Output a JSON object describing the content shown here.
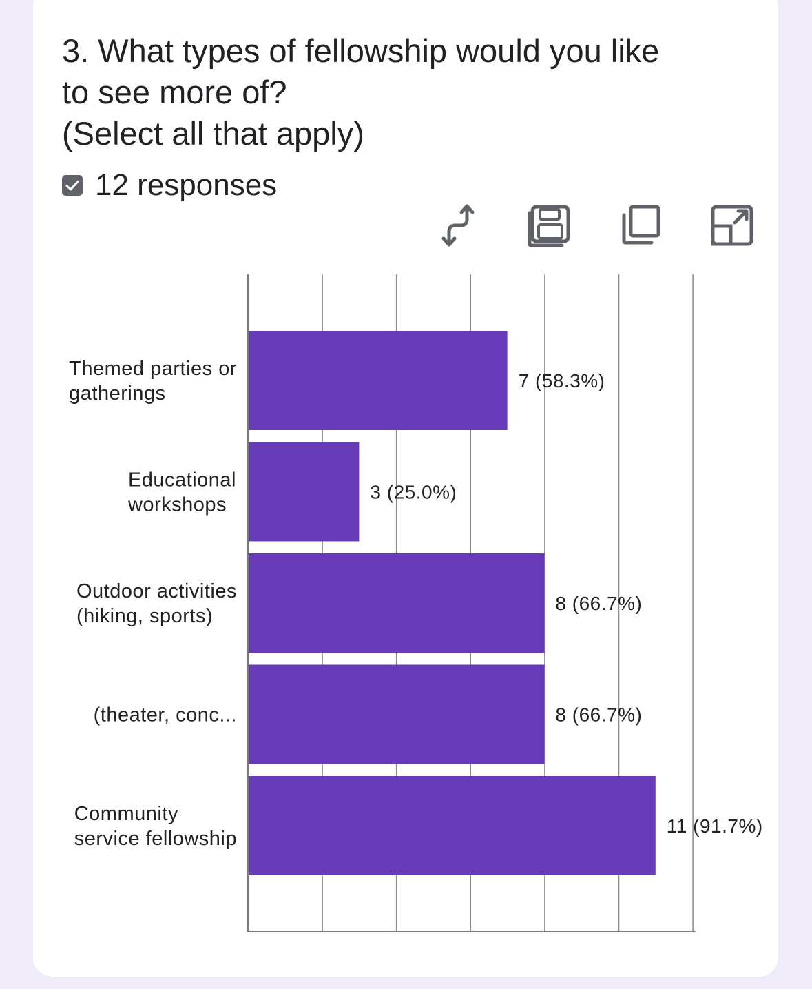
{
  "question": {
    "title": "3. What types of fellowship would you like\nto see more of?\n(Select all that apply)"
  },
  "responses": {
    "count_text": "12 responses"
  },
  "toolbar": {
    "icons": [
      "swap-axes-icon",
      "save-icon",
      "copy-icon",
      "expand-icon"
    ]
  },
  "colors": {
    "bar": "#673ab7",
    "background": "#efebf8",
    "card": "#ffffff",
    "grid": "#8a8a8a"
  },
  "chart_data": {
    "type": "bar",
    "orientation": "horizontal",
    "categories": [
      [
        "Themed parties or",
        "gatherings"
      ],
      [
        "Educational",
        "workshops"
      ],
      [
        "Outdoor activities",
        "(hiking, sports)"
      ],
      [
        "(theater, conc..."
      ],
      [
        "Community",
        "service fellowship"
      ]
    ],
    "values": [
      7,
      3,
      8,
      8,
      11
    ],
    "labels": [
      "7 (58.3%)",
      "3 (25.0%)",
      "8 (66.7%)",
      "8 (66.7%)",
      "11 (91.7%)"
    ],
    "xlim": [
      0,
      12
    ],
    "grid": true,
    "title": "",
    "xlabel": "",
    "ylabel": ""
  }
}
